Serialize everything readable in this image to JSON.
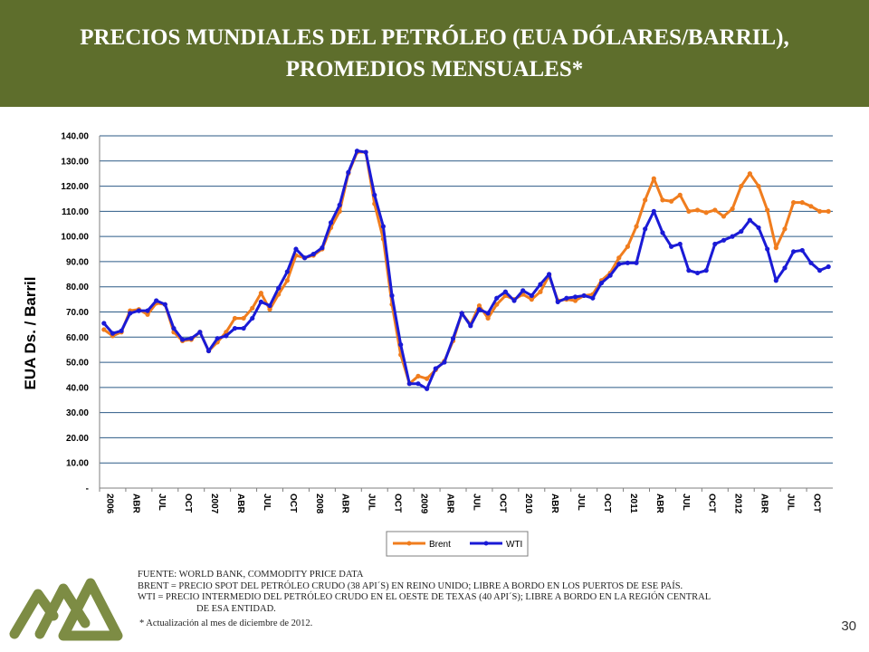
{
  "slide": {
    "title_line1": "PRECIOS MUNDIALES DEL PETRÓLEO (EUA DÓLARES/BARRIL),",
    "title_line2": "PROMEDIOS MENSUALES*",
    "notes": {
      "source": "FUENTE: WORLD BANK, COMMODITY PRICE DATA",
      "brent": "BRENT = PRECIO SPOT DEL PETRÓLEO CRUDO (38 API´S) EN REINO UNIDO; LIBRE A BORDO EN LOS PUERTOS DE ESE PAÍS.",
      "wti_line1": "WTI = PRECIO INTERMEDIO DEL PETRÓLEO CRUDO EN EL OESTE DE TEXAS (40 API´S); LIBRE A BORDO EN LA REGIÓN CENTRAL",
      "wti_line2": "DE ESA ENTIDAD.",
      "update": "* Actualización al mes de diciembre de 2012."
    },
    "page_number": "30",
    "header_color": "#5e6e2c",
    "logo_color": "#7d8c44"
  },
  "chart_data": {
    "type": "line",
    "ylabel": "EUA Ds. / Barril",
    "ylim": [
      0,
      140
    ],
    "y_ticks": [
      "-",
      "10.00",
      "20.00",
      "30.00",
      "40.00",
      "50.00",
      "60.00",
      "70.00",
      "80.00",
      "90.00",
      "100.00",
      "110.00",
      "120.00",
      "130.00",
      "140.00"
    ],
    "grid": true,
    "legend_position": "bottom",
    "x_tick_labels": [
      "2006",
      "ABR",
      "JUL",
      "OCT",
      "2007",
      "ABR",
      "JUL",
      "OCT",
      "2008",
      "ABR",
      "JUL",
      "OCT",
      "2009",
      "ABR",
      "JUL",
      "OCT",
      "2010",
      "ABR",
      "JUL",
      "OCT",
      "2011",
      "ABR",
      "JUL",
      "OCT",
      "2012",
      "ABR",
      "JUL",
      "OCT"
    ],
    "series": [
      {
        "name": "Brent",
        "color": "#f07d1e",
        "values": [
          63.0,
          60.5,
          62.0,
          70.5,
          71.0,
          69.0,
          73.5,
          73.0,
          62.0,
          58.5,
          59.0,
          62.0,
          54.5,
          58.0,
          62.0,
          67.5,
          67.5,
          71.5,
          77.5,
          71.0,
          77.0,
          82.5,
          92.5,
          91.5,
          92.5,
          95.0,
          103.5,
          110.0,
          125.0,
          133.5,
          133.5,
          113.0,
          99.0,
          73.0,
          53.0,
          41.5,
          44.5,
          43.5,
          47.0,
          50.5,
          58.5,
          69.5,
          65.0,
          72.5,
          67.5,
          73.0,
          76.5,
          75.0,
          77.0,
          75.0,
          78.0,
          84.5,
          74.5,
          75.0,
          74.5,
          76.5,
          77.0,
          82.5,
          85.5,
          91.5,
          96.0,
          104.0,
          114.5,
          123.0,
          114.5,
          114.0,
          116.5,
          110.0,
          110.5,
          109.5,
          110.5,
          108.0,
          111.0,
          120.0,
          125.0,
          120.0,
          110.5,
          95.5,
          103.0,
          113.5,
          113.5,
          112.0,
          110.0,
          110.0
        ],
        "values_sample_note": ""
      },
      {
        "name": "WTI",
        "color": "#1a1ad6",
        "values": [
          65.5,
          61.5,
          62.5,
          69.5,
          70.5,
          70.5,
          74.5,
          73.0,
          63.5,
          59.0,
          59.5,
          62.0,
          54.5,
          59.5,
          60.5,
          63.5,
          63.5,
          67.5,
          74.0,
          72.5,
          79.5,
          86.0,
          95.0,
          91.5,
          93.0,
          95.5,
          105.5,
          112.5,
          125.5,
          134.0,
          133.5,
          116.5,
          104.0,
          76.5,
          57.0,
          41.5,
          41.5,
          39.5,
          47.5,
          50.0,
          59.5,
          69.5,
          64.5,
          71.0,
          69.5,
          75.5,
          78.0,
          74.5,
          78.5,
          76.5,
          81.0,
          85.0,
          74.0,
          75.5,
          76.0,
          76.5,
          75.5,
          81.5,
          84.5,
          89.0,
          89.5,
          89.5,
          103.0,
          110.0,
          101.5,
          96.0,
          97.0,
          86.5,
          85.5,
          86.5,
          97.0,
          98.5,
          100.0,
          102.0,
          106.5,
          103.5,
          95.0,
          82.5,
          87.5,
          94.0,
          94.5,
          89.5,
          86.5,
          88.0
        ]
      }
    ]
  }
}
